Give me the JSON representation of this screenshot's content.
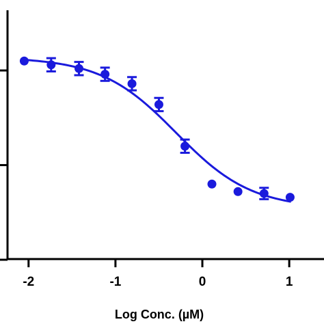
{
  "chart_data": {
    "type": "scatter",
    "title": "",
    "xlabel": "Log Conc. (µM)",
    "ylabel": "",
    "xlim": [
      -2.25,
      1.4
    ],
    "ylim": [
      0,
      130
    ],
    "x_ticks": [
      -2,
      -1,
      0,
      1
    ],
    "x_tick_labels": [
      "-2",
      "-1",
      "0",
      "1"
    ],
    "y_ticks": [
      0,
      50,
      100
    ],
    "grid": false,
    "colors": {
      "series": "#1a1adc",
      "axis": "#000000"
    },
    "series": [
      {
        "x": [
          -2.05,
          -1.74,
          -1.42,
          -1.12,
          -0.81,
          -0.5,
          -0.2,
          0.11,
          0.41,
          0.71,
          1.01
        ],
        "y": [
          105,
          103,
          101,
          98,
          93,
          82,
          60,
          40,
          36,
          35,
          33
        ],
        "error": [
          0,
          3.5,
          3.5,
          3.5,
          3.5,
          3.5,
          3.5,
          0,
          0,
          3,
          0
        ]
      }
    ],
    "fit": {
      "model": "four-parameter logistic",
      "top": 107,
      "bottom": 27,
      "log_ic50": -0.3,
      "hill": 1
    }
  }
}
